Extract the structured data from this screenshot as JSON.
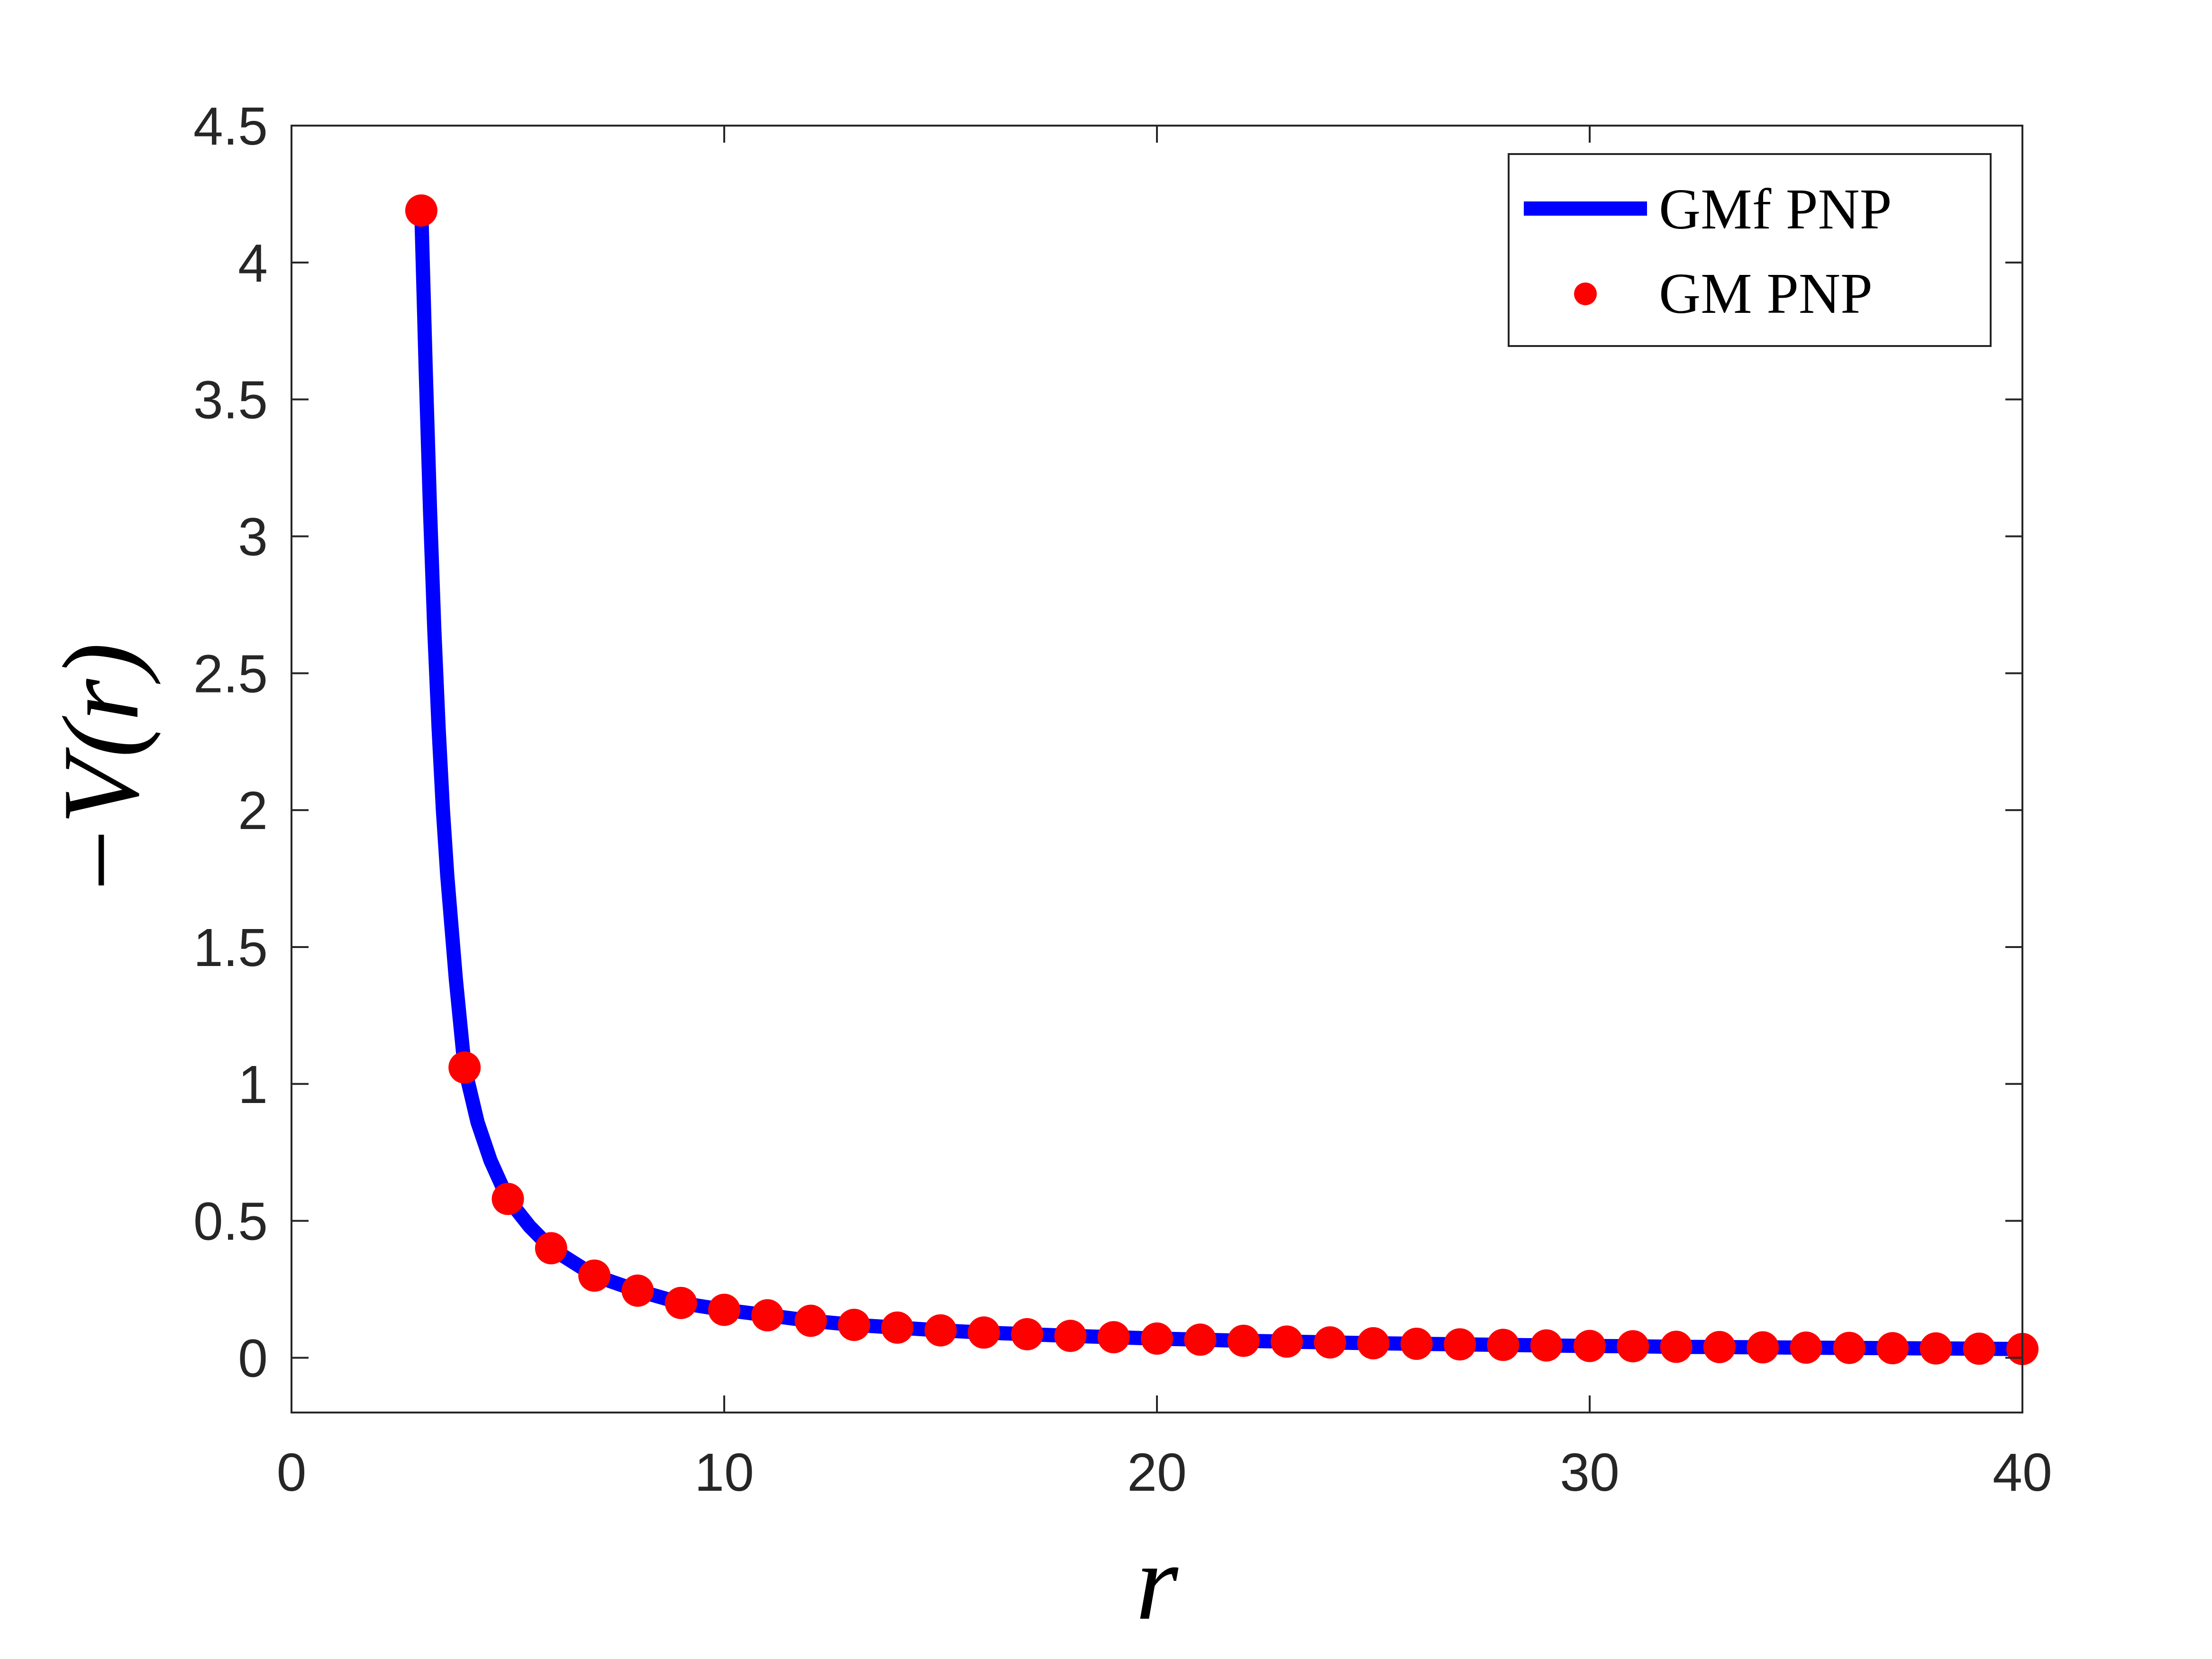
{
  "chart_data": {
    "type": "line",
    "xlabel": "r",
    "ylabel": "−V(r)",
    "xlim": [
      0,
      40
    ],
    "ylim": [
      -0.2,
      4.5
    ],
    "x_ticks": [
      0,
      10,
      20,
      30,
      40
    ],
    "x_tick_labels": [
      "0",
      "10",
      "20",
      "30",
      "40"
    ],
    "y_ticks": [
      0,
      0.5,
      1,
      1.5,
      2,
      2.5,
      3,
      3.5,
      4,
      4.5
    ],
    "y_tick_labels": [
      "0",
      "0.5",
      "1",
      "1.5",
      "2",
      "2.5",
      "3",
      "3.5",
      "4",
      "4.5"
    ],
    "grid": false,
    "legend_position": "top-right",
    "series": [
      {
        "name": "GMf PNP",
        "style": "line",
        "color": "#0000ff",
        "x": [
          3,
          3.1,
          3.2,
          3.3,
          3.4,
          3.5,
          3.6,
          3.8,
          4,
          4.3,
          4.6,
          5,
          5.5,
          6,
          7,
          8,
          9,
          10,
          11,
          12,
          13,
          14,
          15,
          16,
          17,
          18,
          19,
          20,
          21,
          22,
          23,
          24,
          25,
          26,
          27,
          28,
          29,
          30,
          31,
          32,
          33,
          34,
          35,
          36,
          37,
          38,
          39,
          40
        ],
        "y": [
          4.19,
          3.62,
          3.1,
          2.66,
          2.3,
          2.0,
          1.76,
          1.38,
          1.06,
          0.86,
          0.72,
          0.58,
          0.48,
          0.4,
          0.3,
          0.245,
          0.2,
          0.175,
          0.155,
          0.135,
          0.12,
          0.11,
          0.1,
          0.092,
          0.086,
          0.08,
          0.075,
          0.07,
          0.066,
          0.062,
          0.059,
          0.056,
          0.053,
          0.051,
          0.049,
          0.047,
          0.045,
          0.043,
          0.042,
          0.04,
          0.039,
          0.038,
          0.037,
          0.036,
          0.035,
          0.034,
          0.033,
          0.032
        ]
      },
      {
        "name": "GM PNP",
        "style": "markers",
        "color": "#ff0000",
        "x": [
          3,
          4,
          5,
          6,
          7,
          8,
          9,
          10,
          11,
          12,
          13,
          14,
          15,
          16,
          17,
          18,
          19,
          20,
          21,
          22,
          23,
          24,
          25,
          26,
          27,
          28,
          29,
          30,
          31,
          32,
          33,
          34,
          35,
          36,
          37,
          38,
          39,
          40
        ],
        "y": [
          4.19,
          1.06,
          0.58,
          0.4,
          0.3,
          0.245,
          0.2,
          0.175,
          0.155,
          0.135,
          0.12,
          0.11,
          0.1,
          0.092,
          0.086,
          0.08,
          0.075,
          0.07,
          0.066,
          0.062,
          0.059,
          0.056,
          0.053,
          0.051,
          0.049,
          0.047,
          0.045,
          0.043,
          0.042,
          0.04,
          0.039,
          0.038,
          0.037,
          0.036,
          0.035,
          0.034,
          0.033,
          0.032
        ]
      }
    ]
  }
}
